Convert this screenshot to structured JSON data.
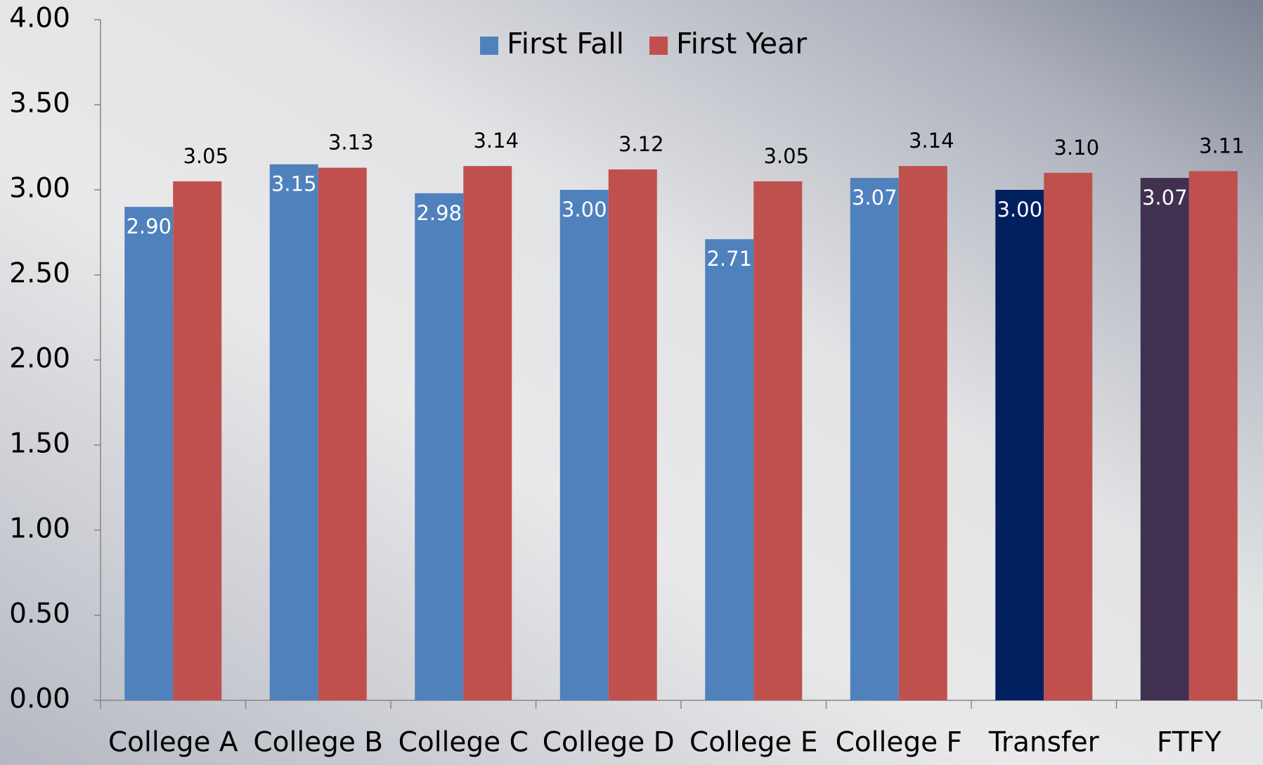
{
  "chart_data": {
    "type": "bar",
    "categories": [
      "College A",
      "College B",
      "College C",
      "College D",
      "College E",
      "College F",
      "Transfer",
      "FTFY"
    ],
    "series": [
      {
        "name": "First Fall",
        "color": "#4f81bd",
        "colors": [
          "#4f81bd",
          "#4f81bd",
          "#4f81bd",
          "#4f81bd",
          "#4f81bd",
          "#4f81bd",
          "#002060",
          "#403151"
        ],
        "values": [
          2.9,
          3.15,
          2.98,
          3.0,
          2.71,
          3.07,
          3.0,
          3.07
        ],
        "value_labels": [
          "2.90",
          "3.15",
          "2.98",
          "3.00",
          "2.71",
          "3.07",
          "3.00",
          "3.07"
        ]
      },
      {
        "name": "First Year",
        "color": "#c0504d",
        "values": [
          3.05,
          3.13,
          3.14,
          3.12,
          3.05,
          3.14,
          3.1,
          3.11
        ],
        "value_labels": [
          "3.05",
          "3.13",
          "3.14",
          "3.12",
          "3.05",
          "3.14",
          "3.10",
          "3.11"
        ]
      }
    ],
    "ylim": [
      0,
      4
    ],
    "yticks": [
      {
        "value": 0,
        "label": "0.00"
      },
      {
        "value": 0.5,
        "label": "0.50"
      },
      {
        "value": 1,
        "label": "1.00"
      },
      {
        "value": 1.5,
        "label": "1.50"
      },
      {
        "value": 2,
        "label": "2.00"
      },
      {
        "value": 2.5,
        "label": "2.50"
      },
      {
        "value": 3,
        "label": "3.00"
      },
      {
        "value": 3.5,
        "label": "3.50"
      },
      {
        "value": 4,
        "label": "4.00"
      }
    ],
    "legend": "top"
  }
}
